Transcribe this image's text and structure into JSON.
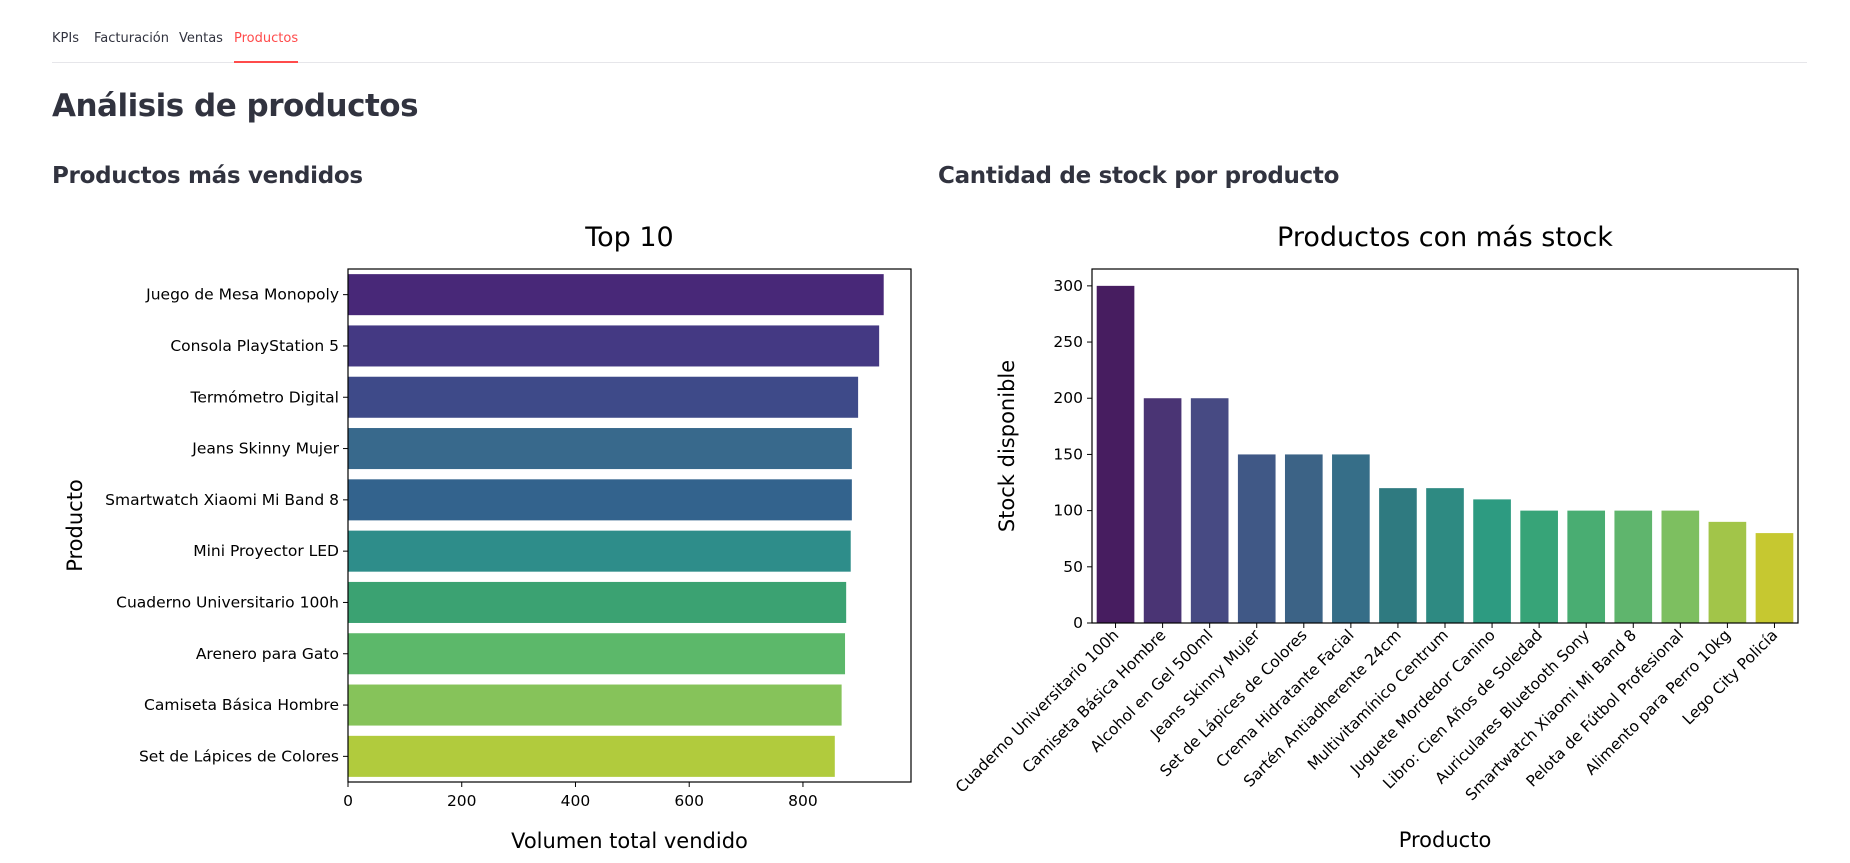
{
  "tabs": [
    {
      "label": "KPIs",
      "active": false
    },
    {
      "label": "Facturación",
      "active": false
    },
    {
      "label": "Ventas",
      "active": false
    },
    {
      "label": "Productos",
      "active": true
    }
  ],
  "accent_color": "#ff4b4b",
  "page": {
    "title": "Análisis de productos"
  },
  "sections": {
    "left_title": "Productos más vendidos",
    "right_title": "Cantidad de stock por producto"
  },
  "chart_data": [
    {
      "type": "bar",
      "orientation": "horizontal",
      "title": "Top 10",
      "xlabel": "Volumen total vendido",
      "ylabel": "Producto",
      "xlim": [
        0,
        990
      ],
      "xticks": [
        0,
        200,
        400,
        600,
        800
      ],
      "palette": "viridis",
      "categories": [
        "Juego de Mesa Monopoly",
        "Consola PlayStation 5",
        "Termómetro Digital",
        "Jeans Skinny Mujer",
        "Smartwatch Xiaomi Mi Band 8",
        "Mini Proyector LED",
        "Cuaderno Universitario 100h",
        "Arenero para Gato",
        "Camiseta Básica Hombre",
        "Set de Lápices de Colores"
      ],
      "values": [
        942,
        934,
        897,
        886,
        886,
        884,
        876,
        874,
        868,
        856
      ],
      "colors": [
        "#482878",
        "#443983",
        "#3e4a89",
        "#38698c",
        "#33638d",
        "#2e8d8a",
        "#3ba272",
        "#5cb86a",
        "#86c35a",
        "#b1cb3d"
      ]
    },
    {
      "type": "bar",
      "title": "Productos con más stock",
      "xlabel": "Producto",
      "ylabel": "Stock disponible",
      "ylim": [
        0,
        315
      ],
      "yticks": [
        0,
        50,
        100,
        150,
        200,
        250,
        300
      ],
      "palette": "viridis",
      "categories": [
        "Cuaderno Universitario 100h",
        "Camiseta Básica Hombre",
        "Alcohol en Gel 500ml",
        "Jeans Skinny Mujer",
        "Set de Lápices de Colores",
        "Crema Hidratante Facial",
        "Sartén Antiadherente 24cm",
        "Multivitamínico Centrum",
        "Juguete Mordedor Canino",
        "Libro: Cien Años de Soledad",
        "Auriculares Bluetooth Sony",
        "Smartwatch Xiaomi Mi Band 8",
        "Pelota de Fútbol Profesional",
        "Alimento para Perro 10kg",
        "Lego City Policía"
      ],
      "values": [
        300,
        200,
        200,
        150,
        150,
        150,
        120,
        120,
        110,
        100,
        100,
        100,
        100,
        90,
        80
      ],
      "colors": [
        "#471d60",
        "#4a3474",
        "#474a83",
        "#405886",
        "#3c6386",
        "#366e88",
        "#2f7a80",
        "#2e8a82",
        "#2d9b81",
        "#37a478",
        "#49ad72",
        "#5fb56d",
        "#7dbf60",
        "#a2c549",
        "#c6c830"
      ]
    }
  ]
}
